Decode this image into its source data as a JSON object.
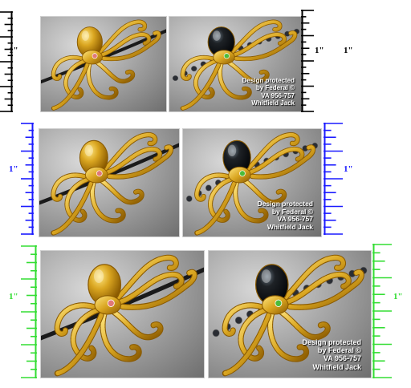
{
  "rows": [
    {
      "ruler_color": "#000000",
      "inch_labels": [
        "1\"",
        "1\"",
        "1\""
      ],
      "photo_gold": {
        "necklace": "black cord",
        "stone": "pink gem"
      },
      "photo_pearl": {
        "necklace": "black pearls",
        "stone": "green gem"
      },
      "caption": [
        "Design protected",
        "by Federal ©",
        "VA  956-757",
        "Whitfield Jack"
      ]
    },
    {
      "ruler_color": "#1a1aff",
      "inch_labels": [
        "1\"",
        "1\""
      ],
      "caption": [
        "Design protected",
        "by Federal ©",
        "VA  956-757",
        "Whitfield Jack"
      ]
    },
    {
      "ruler_color": "#33dd33",
      "inch_labels": [
        "1\"",
        "1\""
      ],
      "caption": [
        "Design protected",
        "by Federal ©",
        "VA  956-757",
        "Whitfield Jack"
      ]
    }
  ],
  "colors": {
    "gold": "#d9a520",
    "gold_light": "#ffe680",
    "gold_dark": "#8a5a00",
    "cord": "#1a1a1a",
    "pearl": "#2a2d33",
    "pink_gem": "#e07878",
    "green_gem": "#4cbb3a"
  }
}
